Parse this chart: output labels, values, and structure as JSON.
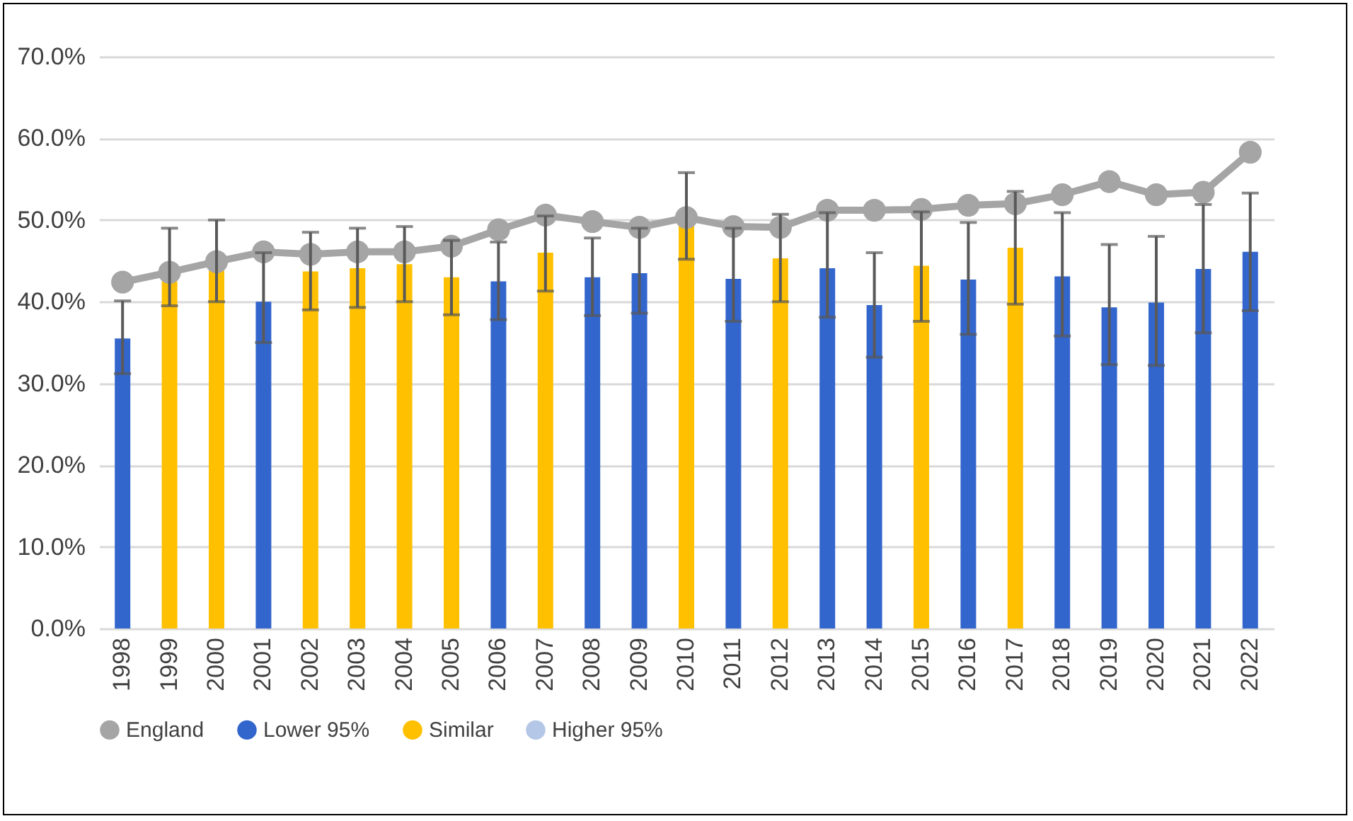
{
  "chart_data": {
    "type": "bar",
    "categories": [
      "1998",
      "1999",
      "2000",
      "2001",
      "2002",
      "2003",
      "2004",
      "2005",
      "2006",
      "2007",
      "2008",
      "2009",
      "2010",
      "2011",
      "2012",
      "2013",
      "2014",
      "2015",
      "2016",
      "2017",
      "2018",
      "2019",
      "2020",
      "2021",
      "2022"
    ],
    "series": [
      {
        "name": "England",
        "type": "line",
        "color": "#a5a5a5",
        "marker": "circle",
        "values": [
          42.4,
          43.6,
          44.9,
          46.1,
          45.8,
          46.1,
          46.1,
          46.8,
          48.8,
          50.6,
          49.8,
          49.1,
          50.3,
          49.2,
          49.1,
          51.2,
          51.2,
          51.3,
          51.8,
          52.0,
          53.1,
          54.7,
          53.1,
          53.4,
          58.3
        ]
      },
      {
        "name": "Lower 95%",
        "color": "#3366cc",
        "values": [
          35.5,
          null,
          null,
          40.0,
          null,
          null,
          null,
          null,
          42.5,
          null,
          43.0,
          43.5,
          null,
          42.8,
          null,
          44.1,
          39.6,
          null,
          42.7,
          null,
          43.1,
          39.3,
          39.9,
          44.0,
          46.1
        ],
        "errors": [
          [
            31.2,
            40.1
          ],
          null,
          null,
          [
            35.0,
            46.0
          ],
          null,
          null,
          null,
          null,
          [
            37.8,
            47.3
          ],
          null,
          [
            38.3,
            47.8
          ],
          [
            38.6,
            49.0
          ],
          null,
          [
            37.6,
            49.0
          ],
          null,
          [
            38.1,
            50.9
          ],
          [
            33.2,
            46.0
          ],
          null,
          [
            36.0,
            49.7
          ],
          null,
          [
            35.8,
            50.9
          ],
          [
            32.3,
            47.0
          ],
          [
            32.2,
            48.0
          ],
          [
            36.2,
            51.9
          ],
          [
            38.9,
            53.3
          ]
        ]
      },
      {
        "name": "Similar",
        "color": "#ffc000",
        "values": [
          null,
          42.5,
          43.8,
          null,
          43.7,
          44.1,
          44.6,
          43.0,
          null,
          46.0,
          null,
          null,
          49.5,
          null,
          45.3,
          null,
          null,
          44.4,
          null,
          46.6,
          null,
          null,
          null,
          null,
          null
        ],
        "errors": [
          null,
          [
            39.5,
            49.0
          ],
          [
            40.0,
            50.0
          ],
          null,
          [
            39.0,
            48.5
          ],
          [
            39.3,
            49.0
          ],
          [
            40.0,
            49.2
          ],
          [
            38.4,
            47.5
          ],
          null,
          [
            41.3,
            50.5
          ],
          null,
          null,
          [
            45.2,
            55.8
          ],
          null,
          [
            40.0,
            50.7
          ],
          null,
          null,
          [
            37.6,
            51.0
          ],
          null,
          [
            39.7,
            53.5
          ],
          null,
          null,
          null,
          null,
          null
        ]
      },
      {
        "name": "Higher 95%",
        "color": "#b4c7e7",
        "values": [
          null,
          null,
          null,
          null,
          null,
          null,
          null,
          null,
          null,
          null,
          null,
          null,
          null,
          null,
          null,
          null,
          null,
          null,
          null,
          null,
          null,
          null,
          null,
          null,
          null
        ]
      }
    ],
    "ylim": [
      0,
      70
    ],
    "yticks": [
      {
        "value": 0,
        "label": "0.0%"
      },
      {
        "value": 10,
        "label": "10.0%"
      },
      {
        "value": 20,
        "label": "20.0%"
      },
      {
        "value": 30,
        "label": "30.0%"
      },
      {
        "value": 40,
        "label": "40.0%"
      },
      {
        "value": 50,
        "label": "50.0%"
      },
      {
        "value": 60,
        "label": "60.0%"
      },
      {
        "value": 70,
        "label": "70.0%"
      }
    ],
    "grid": "y",
    "legend": "bottom"
  }
}
